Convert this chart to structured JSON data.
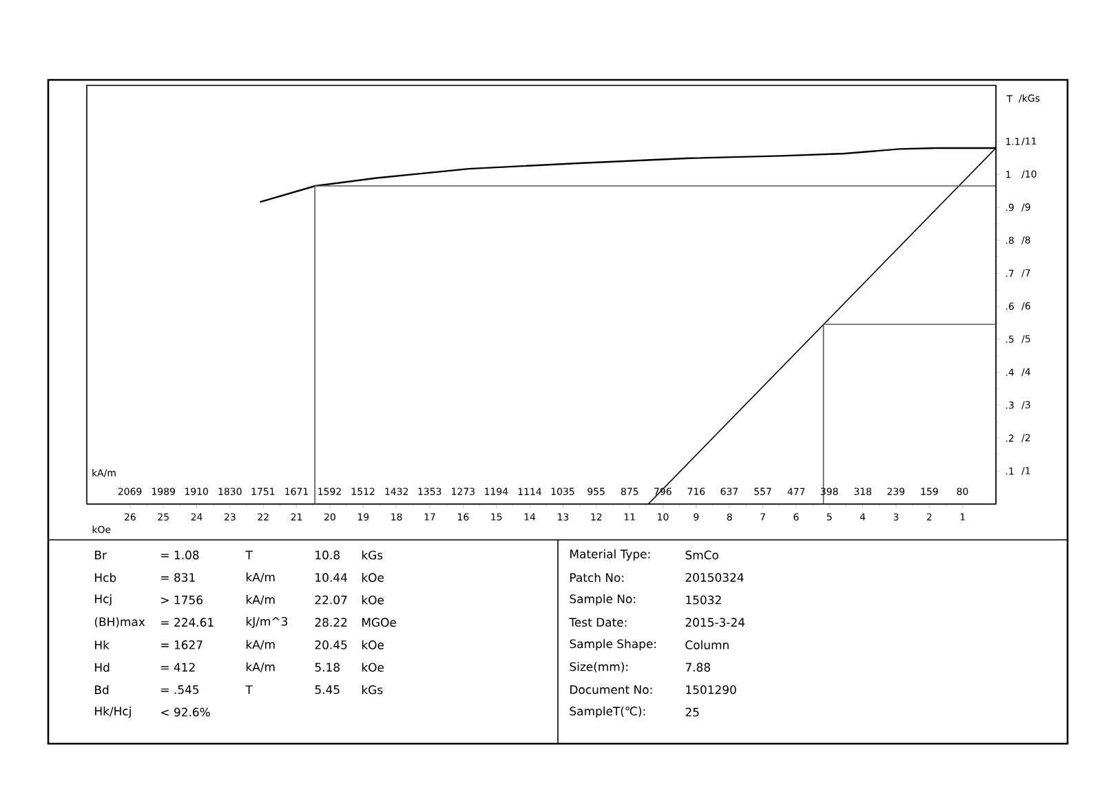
{
  "chart_data": {
    "type": "line",
    "marker": "none",
    "xlabel": "kOe",
    "xlim": [
      27.3,
      0
    ],
    "xticks": [
      1,
      2,
      3,
      4,
      5,
      6,
      7,
      8,
      9,
      10,
      11,
      12,
      13,
      14,
      15,
      16,
      17,
      18,
      19,
      20,
      21,
      22,
      23,
      24,
      25,
      26
    ],
    "x2label": "kA/m",
    "x2lim": [
      2172,
      0
    ],
    "x2ticks": [
      80,
      159,
      239,
      318,
      398,
      477,
      557,
      637,
      716,
      796,
      875,
      955,
      1035,
      1114,
      1194,
      1273,
      1353,
      1432,
      1512,
      1592,
      1671,
      1751,
      1830,
      1910,
      1989,
      2069
    ],
    "ylabel": "T",
    "y2label": "/kGs",
    "ylim": [
      0,
      1.27
    ],
    "yticks": [
      {
        "value": 0.1,
        "label": ".1"
      },
      {
        "value": 0.2,
        "label": ".2"
      },
      {
        "value": 0.3,
        "label": ".3"
      },
      {
        "value": 0.4,
        "label": ".4"
      },
      {
        "value": 0.5,
        "label": ".5"
      },
      {
        "value": 0.6,
        "label": ".6"
      },
      {
        "value": 0.7,
        "label": ".7"
      },
      {
        "value": 0.8,
        "label": ".8"
      },
      {
        "value": 0.9,
        "label": ".9"
      },
      1,
      1.1
    ],
    "y2lim": [
      0,
      12.7
    ],
    "y2ticks": [
      {
        "value": 1,
        "label": "/1"
      },
      {
        "value": 2,
        "label": "/2"
      },
      {
        "value": 3,
        "label": "/3"
      },
      {
        "value": 4,
        "label": "/4"
      },
      {
        "value": 5,
        "label": "/5"
      },
      {
        "value": 6,
        "label": "/6"
      },
      {
        "value": 7,
        "label": "/7"
      },
      {
        "value": 8,
        "label": "/8"
      },
      {
        "value": 9,
        "label": "/9"
      },
      {
        "value": 10,
        "label": "/10"
      },
      {
        "value": 11,
        "label": "/11"
      }
    ],
    "series": [
      {
        "color": "#000000",
        "x": [
          22.1,
          20.44,
          18.6,
          15.83,
          12.52,
          9.21,
          6.46,
          4.55,
          2.89,
          1.78,
          0
        ],
        "values": [
          0.916,
          0.965,
          0.989,
          1.017,
          1.034,
          1.049,
          1.056,
          1.063,
          1.077,
          1.08,
          1.08
        ]
      },
      {
        "color": "#000000",
        "x": [
          10.44,
          0
        ],
        "values": [
          0,
          1.08
        ]
      },
      {
        "color": "#555555",
        "x": [
          20.45,
          20.45,
          0
        ],
        "values": [
          0,
          0.965,
          0.965
        ]
      },
      {
        "color": "#555555",
        "x": [
          5.18,
          5.18,
          0
        ],
        "values": [
          0,
          0.545,
          0.545
        ]
      }
    ],
    "annotations": [
      "Br",
      "= 1.08",
      "T",
      "10.8",
      "kGs",
      "Hcb",
      "= 831",
      "kA/m",
      "10.44",
      "kOe",
      "Hcj",
      "> 1756",
      "kA/m",
      "22.07",
      "kOe",
      "(BH)max",
      "= 224.61",
      "kJ/m^3",
      "28.22",
      "MGOe",
      "Hk",
      "= 1627",
      "kA/m",
      "20.45",
      "kOe",
      "Hd",
      "= 412",
      "kA/m",
      "5.18",
      "kOe",
      "Bd",
      "= .545",
      "T",
      "5.45",
      "kGs",
      "Hk/Hcj",
      "< 92.6%",
      "Material Type:",
      "SmCo",
      "Patch No:",
      "20150324",
      "Sample No:",
      "15032",
      "Test Date:",
      "2015-3-24",
      "Sample Shape:",
      "Column",
      "Size(mm):",
      "7.88",
      "Document No:",
      "1501290",
      "SampleT(℃):",
      "25"
    ]
  }
}
